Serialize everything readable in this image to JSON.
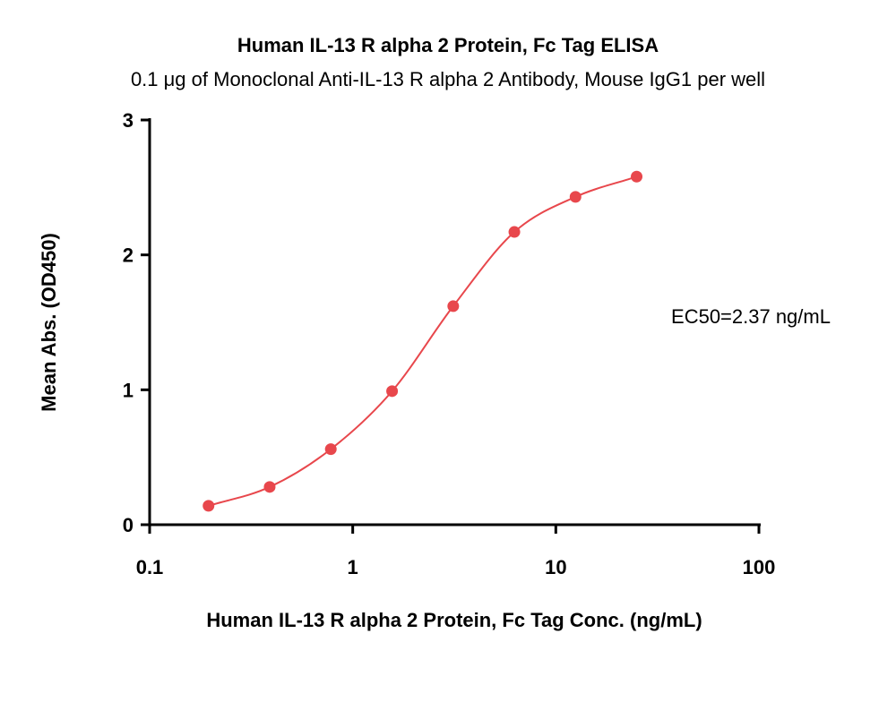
{
  "chart_data": {
    "type": "scatter",
    "title": "Human IL-13 R alpha 2 Protein, Fc Tag ELISA",
    "subtitle": "0.1 μg of Monoclonal Anti-IL-13 R alpha 2 Antibody, Mouse IgG1 per well",
    "x_label": "Human IL-13 R alpha 2 Protein, Fc Tag Conc. (ng/mL)",
    "y_label": "Mean Abs. (OD450)",
    "annotation": "EC50=2.37 ng/mL",
    "x": [
      0.195,
      0.39,
      0.78,
      1.5625,
      3.125,
      6.25,
      12.5,
      25
    ],
    "values": [
      0.14,
      0.28,
      0.56,
      0.99,
      1.62,
      2.17,
      2.43,
      2.58
    ],
    "color": "#e8474c",
    "fit_line": true,
    "x_log": true,
    "xlim": [
      0.1,
      100
    ],
    "xticks": [
      0.1,
      1,
      10,
      100
    ],
    "ylim": [
      0,
      3
    ],
    "yticks": [
      0,
      1,
      2,
      3
    ]
  }
}
